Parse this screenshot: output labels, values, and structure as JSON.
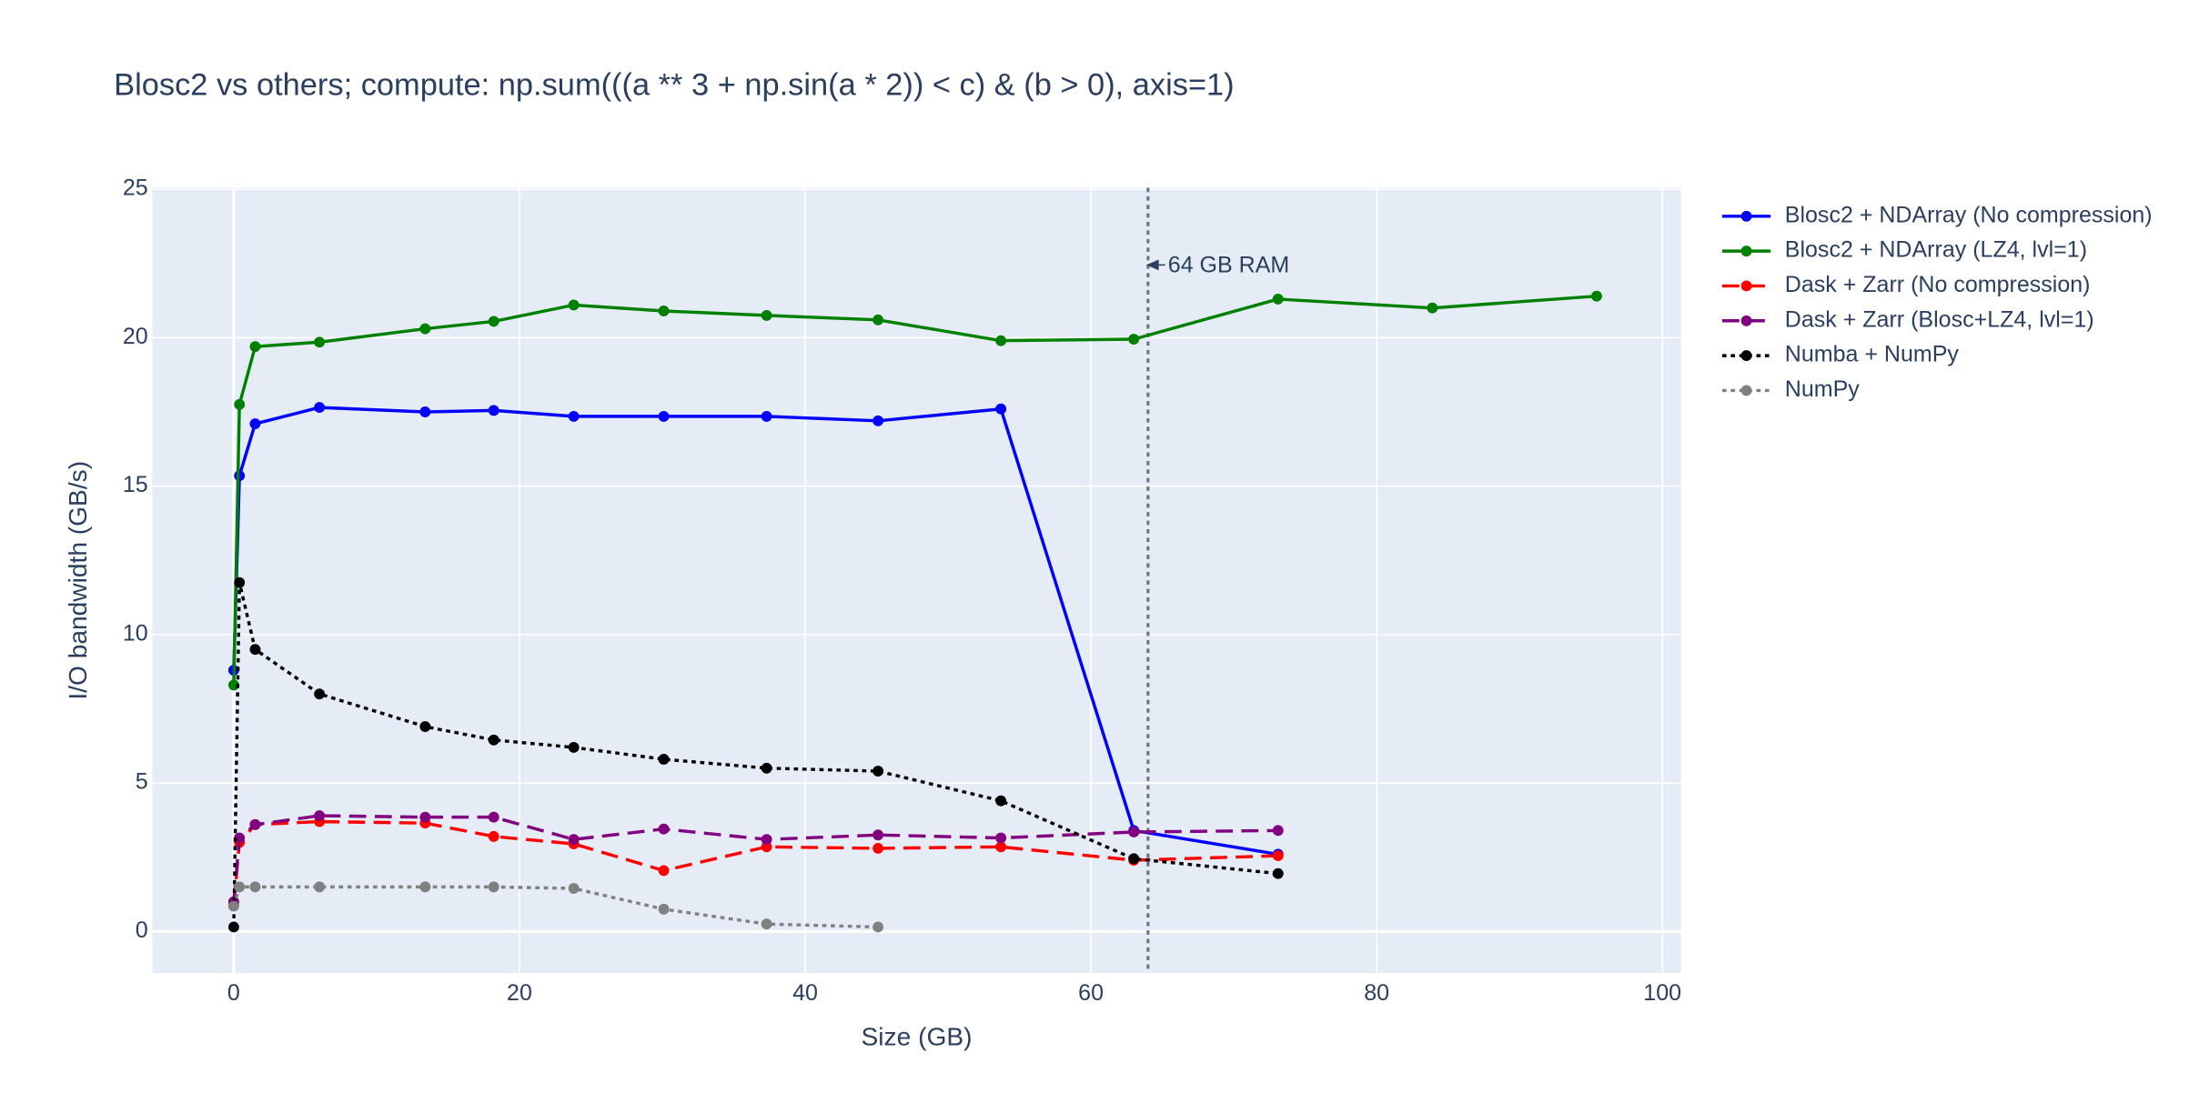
{
  "chart_data": {
    "type": "line",
    "title": "Blosc2 vs others; compute: np.sum(((a ** 3 + np.sin(a * 2)) < c) & (b > 0), axis=1)",
    "x_label": "Size (GB)",
    "y_label": "I/O bandwidth (GB/s)",
    "xlim": [
      -5.7,
      101.3
    ],
    "ylim": [
      -1.4,
      25.05
    ],
    "xticks": [
      0,
      20,
      40,
      60,
      80,
      100
    ],
    "yticks": [
      0,
      5,
      10,
      15,
      20,
      25
    ],
    "grid": true,
    "legend": "outside-right",
    "annotations": [
      {
        "text": "64 GB RAM",
        "x": 64,
        "y": 22.45
      }
    ],
    "series": [
      {
        "name": "Blosc2 + NDArray (No compression)",
        "color": "#0000ff",
        "dash": "solid",
        "x": [
          0,
          0.4,
          1.5,
          6,
          13.4,
          18.2,
          23.8,
          30.1,
          37.3,
          45.1,
          53.7,
          63,
          73.1
        ],
        "values": [
          8.8,
          15.35,
          17.1,
          17.65,
          17.5,
          17.55,
          17.35,
          17.35,
          17.35,
          17.2,
          17.6,
          3.4,
          2.6
        ]
      },
      {
        "name": "Blosc2 + NDArray (LZ4, lvl=1)",
        "color": "#008000",
        "dash": "solid",
        "x": [
          0,
          0.4,
          1.5,
          6,
          13.4,
          18.2,
          23.8,
          30.1,
          37.3,
          45.1,
          53.7,
          63,
          73.1,
          83.9,
          95.4
        ],
        "values": [
          8.3,
          17.75,
          19.7,
          19.85,
          20.3,
          20.55,
          21.1,
          20.9,
          20.75,
          20.6,
          19.9,
          19.95,
          21.3,
          21.0,
          21.4
        ]
      },
      {
        "name": "Dask + Zarr (No compression)",
        "color": "#ff0000",
        "dash": "dash",
        "x": [
          0,
          0.4,
          1.5,
          6,
          13.4,
          18.2,
          23.8,
          30.1,
          37.3,
          45.1,
          53.7,
          63,
          73.1
        ],
        "values": [
          0.9,
          3.0,
          3.6,
          3.7,
          3.65,
          3.2,
          2.95,
          2.05,
          2.85,
          2.8,
          2.85,
          2.4,
          2.55
        ]
      },
      {
        "name": "Dask + Zarr (Blosc+LZ4, lvl=1)",
        "color": "#800080",
        "dash": "dash",
        "x": [
          0,
          0.4,
          1.5,
          6,
          13.4,
          18.2,
          23.8,
          30.1,
          37.3,
          45.1,
          53.7,
          63,
          73.1
        ],
        "values": [
          1.0,
          3.15,
          3.6,
          3.9,
          3.85,
          3.85,
          3.1,
          3.45,
          3.1,
          3.25,
          3.15,
          3.35,
          3.4
        ]
      },
      {
        "name": "Numba + NumPy",
        "color": "#000000",
        "dash": "dot",
        "x": [
          0,
          0.4,
          1.5,
          6,
          13.4,
          18.2,
          23.8,
          30.1,
          37.3,
          45.1,
          53.7,
          63,
          73.1
        ],
        "values": [
          0.15,
          11.75,
          9.5,
          8.0,
          6.9,
          6.45,
          6.2,
          5.8,
          5.5,
          5.4,
          4.4,
          2.45,
          1.95
        ]
      },
      {
        "name": "NumPy",
        "color": "#808080",
        "dash": "dot",
        "x": [
          0,
          0.4,
          1.5,
          6,
          13.4,
          18.2,
          23.8,
          30.1,
          37.3,
          45.1
        ],
        "values": [
          0.85,
          1.5,
          1.5,
          1.5,
          1.5,
          1.5,
          1.45,
          0.75,
          0.25,
          0.15
        ]
      }
    ]
  }
}
